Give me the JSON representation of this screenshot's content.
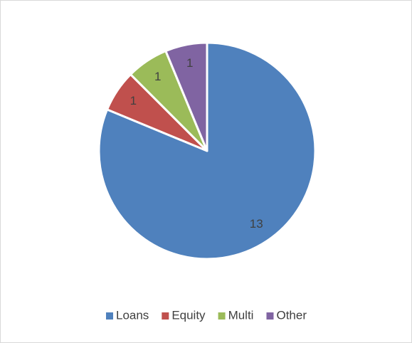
{
  "chart_data": {
    "type": "pie",
    "categories": [
      "Loans",
      "Equity",
      "Multi",
      "Other"
    ],
    "values": [
      13,
      1,
      1,
      1
    ],
    "colors": [
      "#4f81bd",
      "#c0504d",
      "#9bbb59",
      "#8064a2"
    ],
    "legend": "bottom"
  }
}
